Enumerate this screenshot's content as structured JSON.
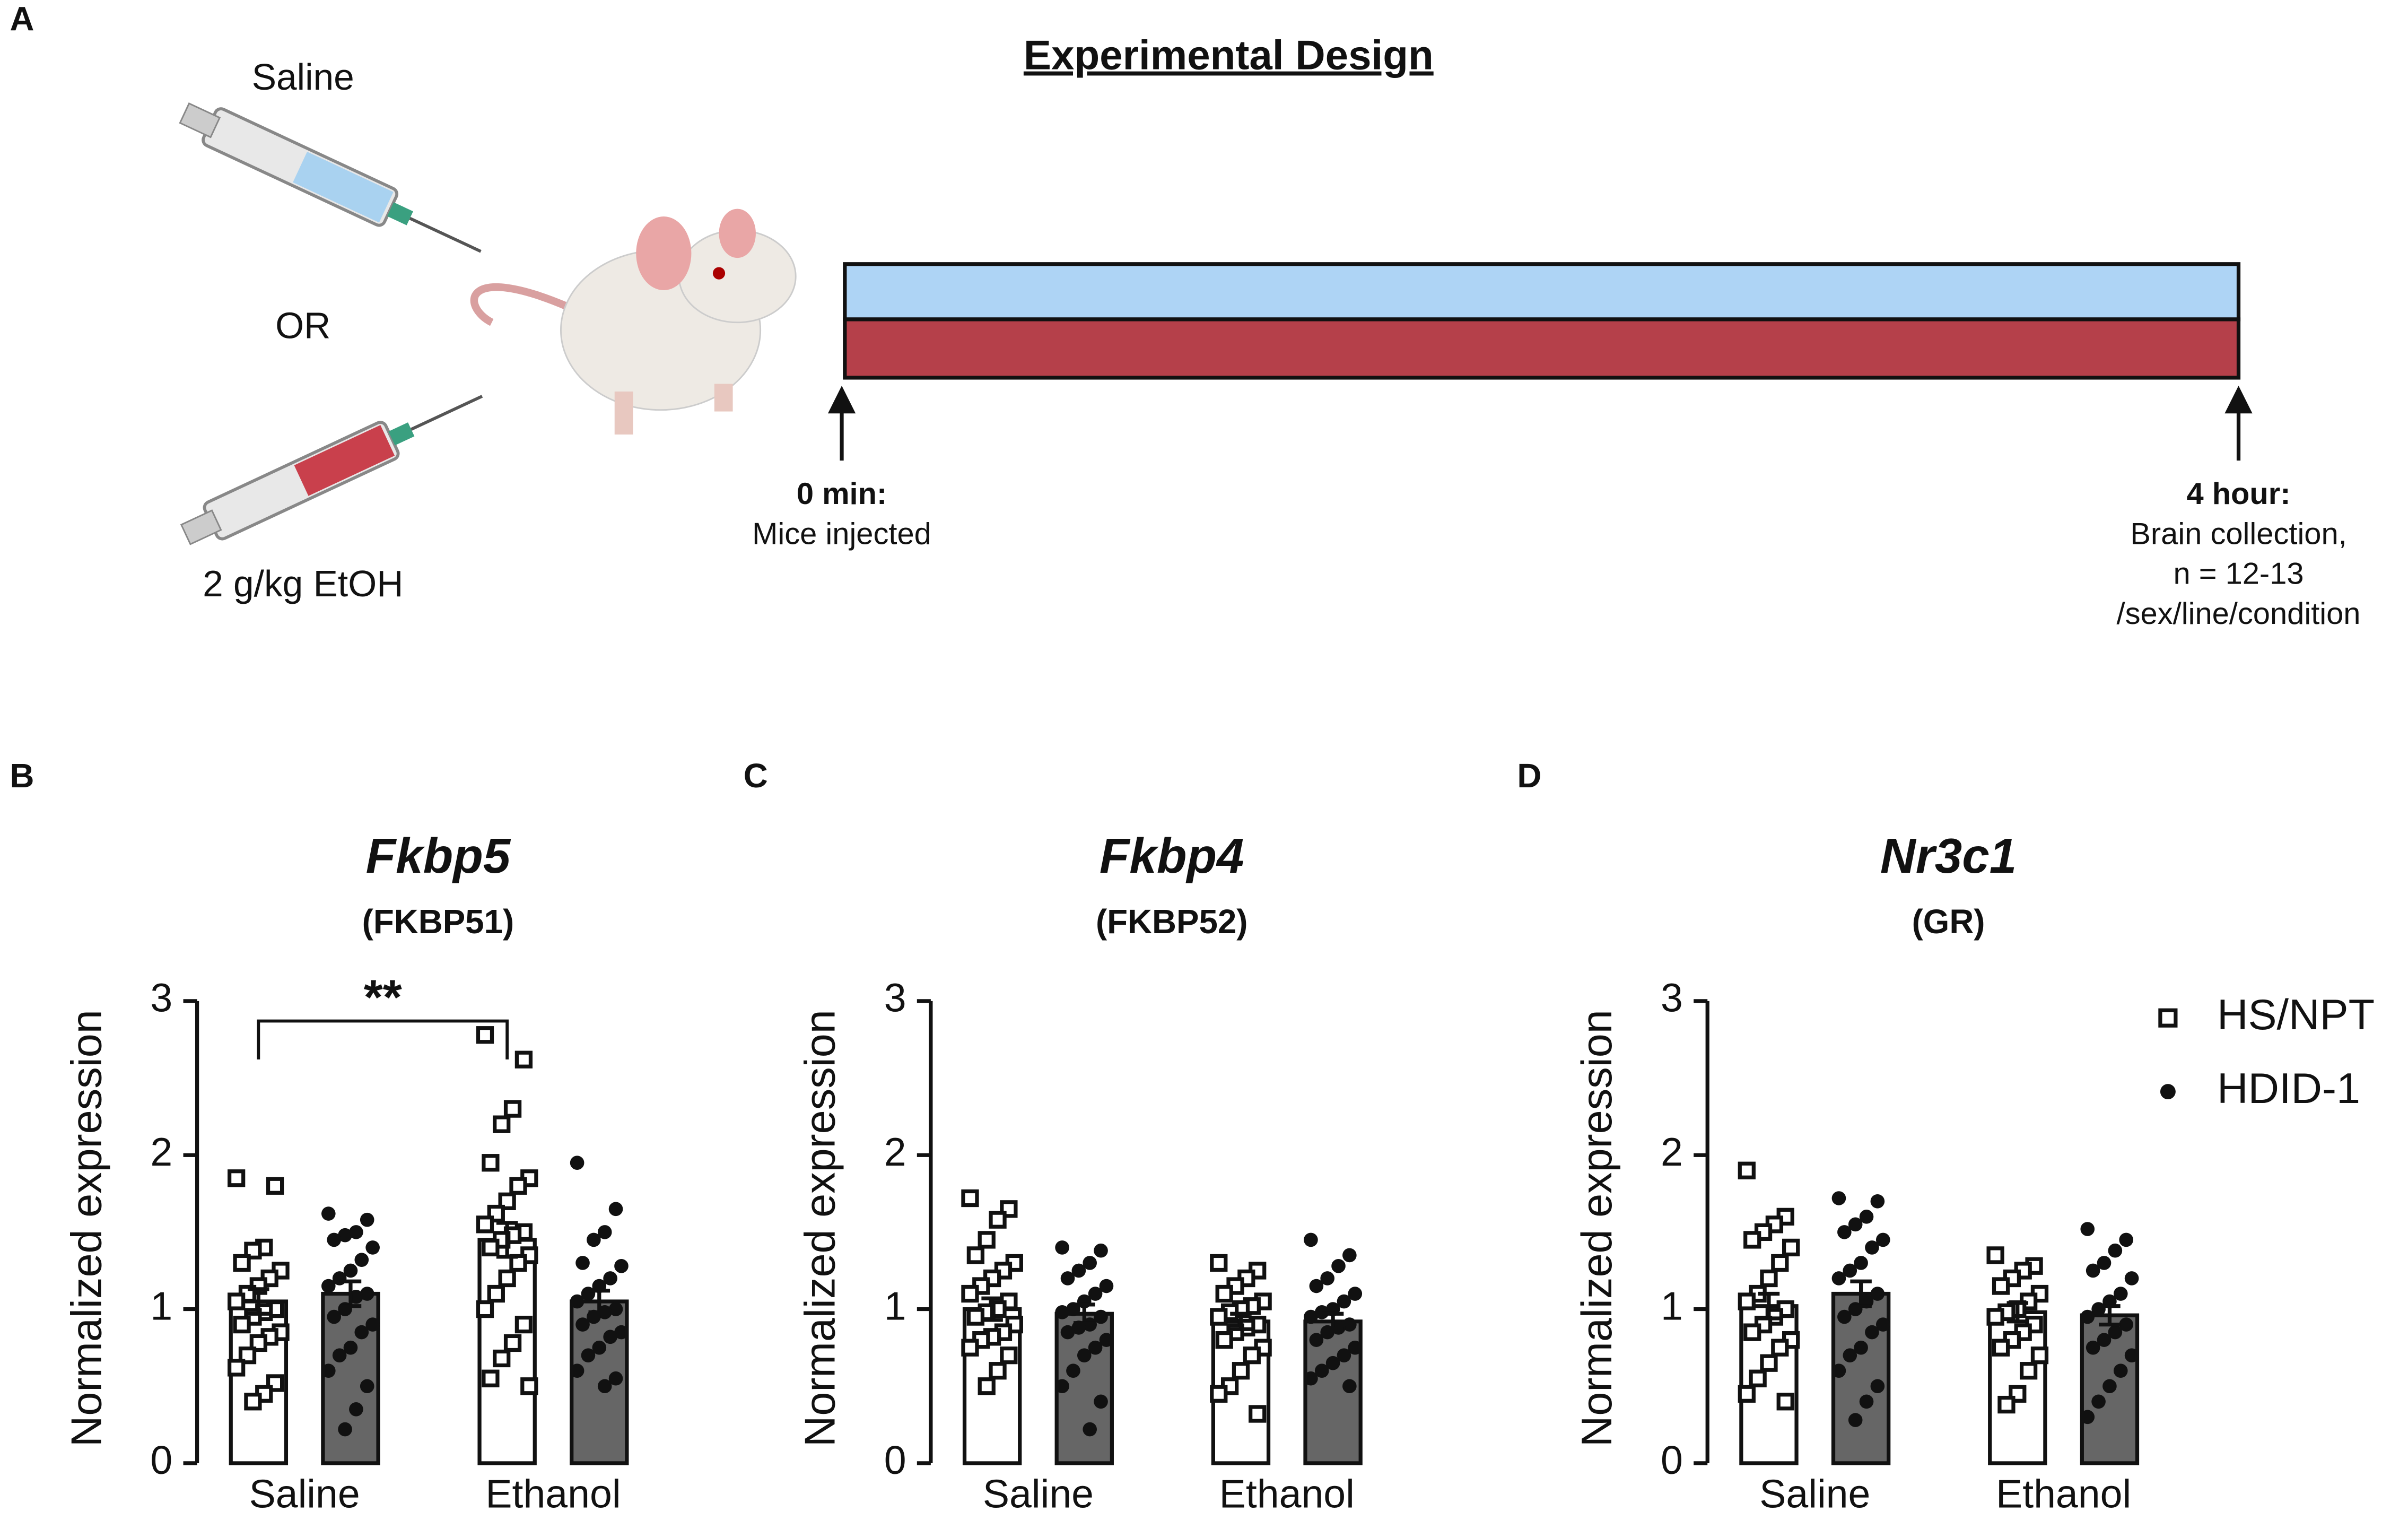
{
  "panel_labels": [
    "A",
    "B",
    "C",
    "D"
  ],
  "design": {
    "title": "Experimental Design",
    "treatments": [
      "Saline",
      "OR",
      "2 g/kg EtOH"
    ],
    "start": {
      "label": "0 min:",
      "lines": [
        "Mice injected"
      ]
    },
    "end": {
      "label": "4 hour:",
      "lines": [
        "Brain collection,",
        "n = 12-13",
        "/sex/line/condition"
      ]
    }
  },
  "chart_data": [
    {
      "type": "bar",
      "title": "Fkbp5",
      "subtitle": "(FKBP51)",
      "y_label": "Normalized expression",
      "categories": [
        "Saline",
        "Ethanol"
      ],
      "ylim": [
        0,
        3
      ],
      "yticks": [
        0,
        1,
        2,
        3
      ],
      "annotation": "**",
      "series": [
        {
          "name": "HS/NPT",
          "color": "#ffffff",
          "marker": "square",
          "values": [
            1.05,
            1.45
          ],
          "errors": [
            0.08,
            0.11
          ],
          "points": [
            [
              1.85,
              1.8,
              1.4,
              1.38,
              1.3,
              1.25,
              1.2,
              1.15,
              1.1,
              1.05,
              1.0,
              0.98,
              0.95,
              0.9,
              0.85,
              0.82,
              0.78,
              0.7,
              0.62,
              0.52,
              0.45,
              0.4
            ],
            [
              2.78,
              2.62,
              2.3,
              2.2,
              1.95,
              1.85,
              1.8,
              1.7,
              1.62,
              1.55,
              1.5,
              1.48,
              1.45,
              1.4,
              1.35,
              1.3,
              1.2,
              1.1,
              1.0,
              0.9,
              0.78,
              0.68,
              0.55,
              0.5
            ]
          ]
        },
        {
          "name": "HDID-1",
          "color": "#666666",
          "marker": "circle",
          "values": [
            1.1,
            1.05
          ],
          "errors": [
            0.08,
            0.07
          ],
          "points": [
            [
              1.62,
              1.58,
              1.5,
              1.48,
              1.45,
              1.4,
              1.32,
              1.25,
              1.2,
              1.15,
              1.1,
              1.08,
              1.0,
              0.95,
              0.9,
              0.85,
              0.75,
              0.7,
              0.6,
              0.5,
              0.35,
              0.22
            ],
            [
              1.95,
              1.65,
              1.5,
              1.45,
              1.3,
              1.28,
              1.2,
              1.15,
              1.1,
              1.05,
              1.0,
              0.98,
              0.95,
              0.9,
              0.85,
              0.82,
              0.75,
              0.7,
              0.6,
              0.55,
              0.5
            ]
          ]
        }
      ]
    },
    {
      "type": "bar",
      "title": "Fkbp4",
      "subtitle": "(FKBP52)",
      "y_label": "Normalized expression",
      "categories": [
        "Saline",
        "Ethanol"
      ],
      "ylim": [
        0,
        3
      ],
      "yticks": [
        0,
        1,
        2,
        3
      ],
      "series": [
        {
          "name": "HS/NPT",
          "color": "#ffffff",
          "marker": "square",
          "values": [
            1.0,
            0.92
          ],
          "errors": [
            0.07,
            0.05
          ],
          "points": [
            [
              1.72,
              1.65,
              1.58,
              1.45,
              1.35,
              1.3,
              1.25,
              1.2,
              1.15,
              1.1,
              1.05,
              1.0,
              0.98,
              0.95,
              0.9,
              0.85,
              0.82,
              0.8,
              0.75,
              0.7,
              0.6,
              0.5
            ],
            [
              1.3,
              1.25,
              1.2,
              1.15,
              1.1,
              1.05,
              1.02,
              1.0,
              0.98,
              0.95,
              0.9,
              0.88,
              0.85,
              0.8,
              0.75,
              0.7,
              0.6,
              0.5,
              0.45,
              0.32
            ]
          ]
        },
        {
          "name": "HDID-1",
          "color": "#666666",
          "marker": "circle",
          "values": [
            0.97,
            0.92
          ],
          "errors": [
            0.06,
            0.05
          ],
          "points": [
            [
              1.4,
              1.38,
              1.3,
              1.25,
              1.2,
              1.15,
              1.1,
              1.05,
              1.0,
              0.98,
              0.95,
              0.9,
              0.88,
              0.85,
              0.8,
              0.75,
              0.7,
              0.6,
              0.5,
              0.4,
              0.22
            ],
            [
              1.45,
              1.35,
              1.28,
              1.2,
              1.15,
              1.1,
              1.05,
              1.0,
              0.98,
              0.95,
              0.9,
              0.88,
              0.85,
              0.8,
              0.75,
              0.7,
              0.65,
              0.6,
              0.55,
              0.5
            ]
          ]
        }
      ]
    },
    {
      "type": "bar",
      "title": "Nr3c1",
      "subtitle": "(GR)",
      "y_label": "Normalized expression",
      "categories": [
        "Saline",
        "Ethanol"
      ],
      "ylim": [
        0,
        3
      ],
      "yticks": [
        0,
        1,
        2,
        3
      ],
      "legend": "upper right",
      "series": [
        {
          "name": "HS/NPT",
          "color": "#ffffff",
          "marker": "square",
          "values": [
            1.02,
            0.98
          ],
          "errors": [
            0.08,
            0.06
          ],
          "points": [
            [
              1.9,
              1.6,
              1.55,
              1.5,
              1.45,
              1.4,
              1.3,
              1.2,
              1.1,
              1.05,
              1.0,
              0.95,
              0.9,
              0.85,
              0.8,
              0.75,
              0.65,
              0.55,
              0.45,
              0.4
            ],
            [
              1.35,
              1.28,
              1.25,
              1.2,
              1.15,
              1.1,
              1.05,
              1.0,
              0.98,
              0.95,
              0.9,
              0.85,
              0.8,
              0.75,
              0.7,
              0.6,
              0.45,
              0.38
            ]
          ]
        },
        {
          "name": "HDID-1",
          "color": "#666666",
          "marker": "circle",
          "values": [
            1.1,
            0.96
          ],
          "errors": [
            0.08,
            0.06
          ],
          "points": [
            [
              1.72,
              1.7,
              1.6,
              1.55,
              1.5,
              1.45,
              1.4,
              1.3,
              1.25,
              1.2,
              1.1,
              1.05,
              1.0,
              0.95,
              0.9,
              0.85,
              0.75,
              0.7,
              0.6,
              0.5,
              0.4,
              0.28
            ],
            [
              1.52,
              1.45,
              1.38,
              1.3,
              1.25,
              1.2,
              1.1,
              1.05,
              1.0,
              0.95,
              0.9,
              0.85,
              0.8,
              0.75,
              0.7,
              0.6,
              0.5,
              0.4,
              0.3
            ]
          ]
        }
      ]
    }
  ]
}
